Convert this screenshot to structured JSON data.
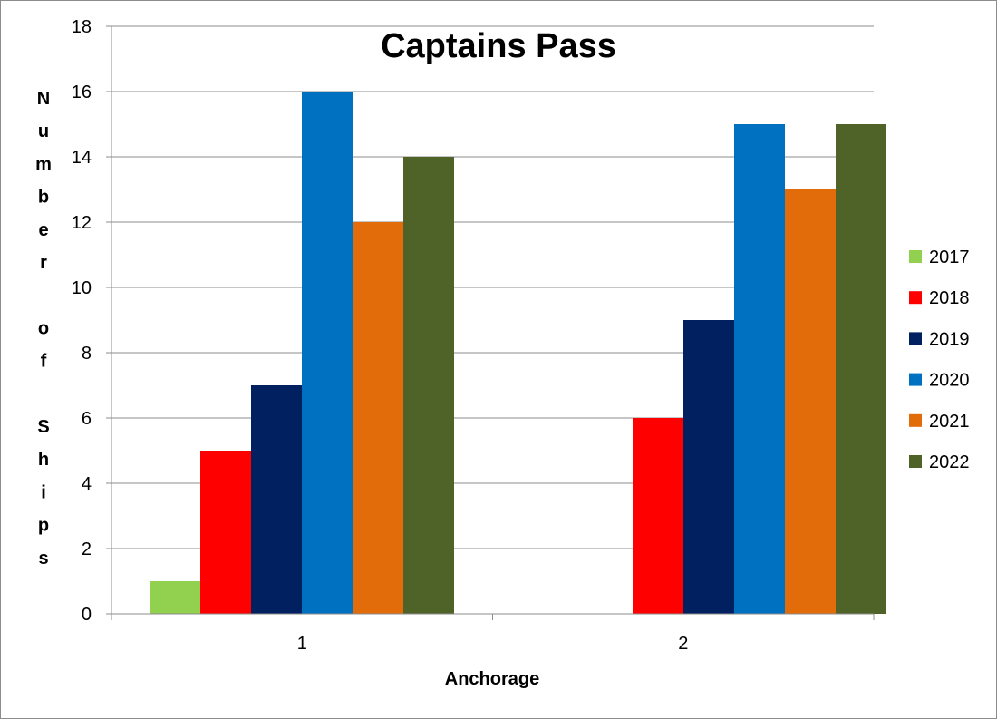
{
  "chart_data": {
    "type": "bar",
    "title": "Captains Pass",
    "xlabel": "Anchorage",
    "ylabel": "Number of Ships",
    "ylabel_lines": [
      "N",
      "u",
      "m",
      "b",
      "e",
      "r",
      "",
      "o",
      "f",
      "",
      "S",
      "h",
      "i",
      "p",
      "s"
    ],
    "categories": [
      "1",
      "2"
    ],
    "ylim": [
      0,
      18
    ],
    "yticks": [
      "0",
      "2",
      "4",
      "6",
      "8",
      "10",
      "12",
      "14",
      "16",
      "18"
    ],
    "grid": true,
    "legend_position": "right",
    "series": [
      {
        "name": "2017",
        "values": [
          1,
          0
        ],
        "color": "#92d050"
      },
      {
        "name": "2018",
        "values": [
          5,
          6
        ],
        "color": "#ff0000"
      },
      {
        "name": "2019",
        "values": [
          7,
          9
        ],
        "color": "#002060"
      },
      {
        "name": "2020",
        "values": [
          16,
          15
        ],
        "color": "#0070c0"
      },
      {
        "name": "2021",
        "values": [
          12,
          13
        ],
        "color": "#e36c0a"
      },
      {
        "name": "2022",
        "values": [
          14,
          15
        ],
        "color": "#4f6228"
      }
    ]
  }
}
